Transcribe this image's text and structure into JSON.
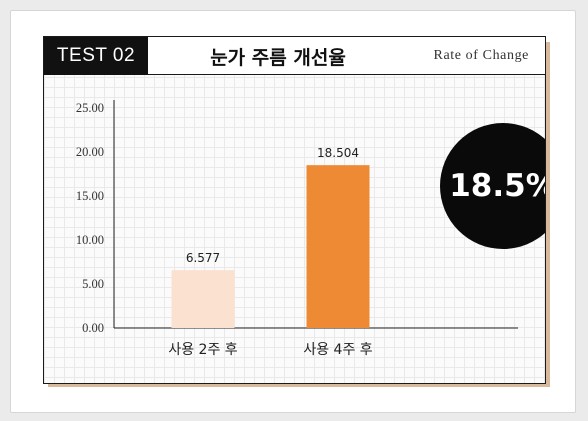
{
  "header": {
    "tag": "TEST 02",
    "title": "눈가 주름 개선율",
    "subtitle": "Rate of Change"
  },
  "badge": {
    "value": "18.5%"
  },
  "chart_data": {
    "type": "bar",
    "categories": [
      "사용 2주 후",
      "사용 4주 후"
    ],
    "values": [
      6.577,
      18.504
    ],
    "data_labels": [
      "6.577",
      "18.504"
    ],
    "ylim": [
      0,
      25
    ],
    "yticks": [
      "0.00",
      "5.00",
      "10.00",
      "15.00",
      "20.00",
      "25.00"
    ],
    "bar_colors": [
      "#fbe2d0",
      "#ee8a34"
    ],
    "grid": false
  },
  "colors": {
    "accent": "#ee8a34",
    "accent_light": "#fbe2d0",
    "dark": "#111111"
  }
}
